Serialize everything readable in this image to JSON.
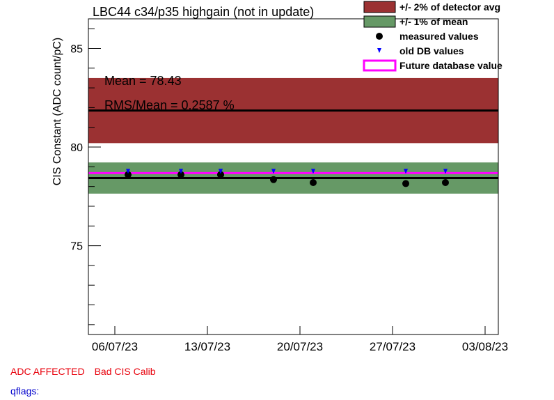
{
  "chart_data": {
    "type": "scatter",
    "title": "LBC44 c34/p35 highgain (not in update)",
    "ylabel": "CIS Constant (ADC count/pC)",
    "xlabel": "",
    "x_range": [
      "2023-07-04",
      "2023-08-04"
    ],
    "ylim": [
      70.5,
      86.5
    ],
    "x_tick_labels": [
      "06/07/23",
      "13/07/23",
      "20/07/23",
      "27/07/23",
      "03/08/23"
    ],
    "x_tick_dates": [
      "2023-07-06",
      "2023-07-13",
      "2023-07-20",
      "2023-07-27",
      "2023-08-03"
    ],
    "y_tick_labels": [
      "75",
      "80",
      "85"
    ],
    "y_ticks": [
      75,
      80,
      85
    ],
    "bands": [
      {
        "name": "+/- 2% of detector avg",
        "low": 80.2,
        "high": 83.5,
        "color": "#9b3132"
      },
      {
        "name": "+/- 1% of mean",
        "low": 77.64,
        "high": 79.22,
        "color": "#669966"
      }
    ],
    "lines": [
      {
        "name": "detector avg",
        "y": 81.85,
        "color": "#000000"
      },
      {
        "name": "mean",
        "y": 78.43,
        "color": "#000000"
      },
      {
        "name": "Future database value",
        "y": 78.68,
        "color": "#ff00ff"
      }
    ],
    "series": [
      {
        "name": "measured values",
        "marker": "circle",
        "color": "#000000",
        "x": [
          "2023-07-07",
          "2023-07-11",
          "2023-07-14",
          "2023-07-14",
          "2023-07-18",
          "2023-07-21",
          "2023-07-28",
          "2023-07-31"
        ],
        "y": [
          78.6,
          78.6,
          78.6,
          78.6,
          78.35,
          78.2,
          78.15,
          78.2
        ]
      },
      {
        "name": "old DB values",
        "marker": "triangle-down",
        "color": "#0000ff",
        "x": [
          "2023-07-07",
          "2023-07-11",
          "2023-07-14",
          "2023-07-14",
          "2023-07-18",
          "2023-07-21",
          "2023-07-28",
          "2023-07-31"
        ],
        "y": [
          78.75,
          78.75,
          78.75,
          78.75,
          78.75,
          78.75,
          78.75,
          78.75
        ]
      }
    ],
    "legend": {
      "position": "top-right",
      "entries": [
        {
          "label": "+/- 2% of detector avg",
          "kind": "box",
          "color": "#9b3132"
        },
        {
          "label": "+/- 1% of mean",
          "kind": "box",
          "color": "#669966"
        },
        {
          "label": "measured values",
          "kind": "circle",
          "color": "#000000"
        },
        {
          "label": "old DB values",
          "kind": "triangle",
          "color": "#0000ff"
        },
        {
          "label": "Future database value",
          "kind": "outline",
          "color": "#ff00ff"
        }
      ]
    },
    "annotations": [
      "Mean = 78.43",
      "RMS/Mean = 0.2587 %"
    ],
    "grid": false
  },
  "footer": {
    "flag_1": "ADC AFFECTED",
    "flag_2": "Bad CIS Calib",
    "qflags": "qflags:"
  }
}
